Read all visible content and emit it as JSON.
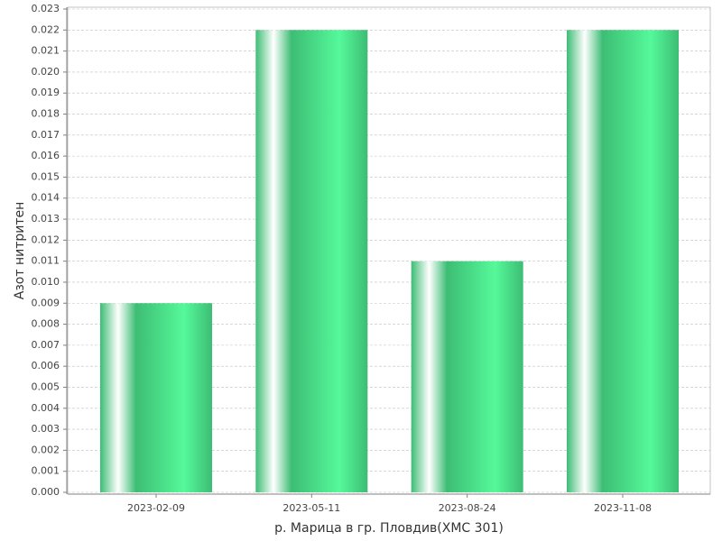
{
  "chart_data": {
    "type": "bar",
    "x_label": "р. Марица в гр. Пловдив(ХМС 301)",
    "y_label": "Азот нитритен",
    "categories": [
      "2023-02-09",
      "2023-05-11",
      "2023-08-24",
      "2023-11-08"
    ],
    "values": [
      0.009,
      0.022,
      0.011,
      0.022
    ],
    "color": "#3dbd74",
    "ylim": [
      0,
      0.023
    ],
    "yticks": [
      {
        "value": 0,
        "label": "0.000"
      },
      0.001,
      0.002,
      0.003,
      0.004,
      0.005,
      0.006,
      0.007,
      0.008,
      0.009,
      {
        "value": 0.01,
        "label": "0.010"
      },
      0.011,
      0.012,
      0.013,
      0.014,
      0.015,
      0.016,
      0.017,
      0.018,
      0.019,
      {
        "value": 0.02,
        "label": "0.020"
      },
      0.021,
      0.022,
      0.023
    ],
    "grid": true
  }
}
